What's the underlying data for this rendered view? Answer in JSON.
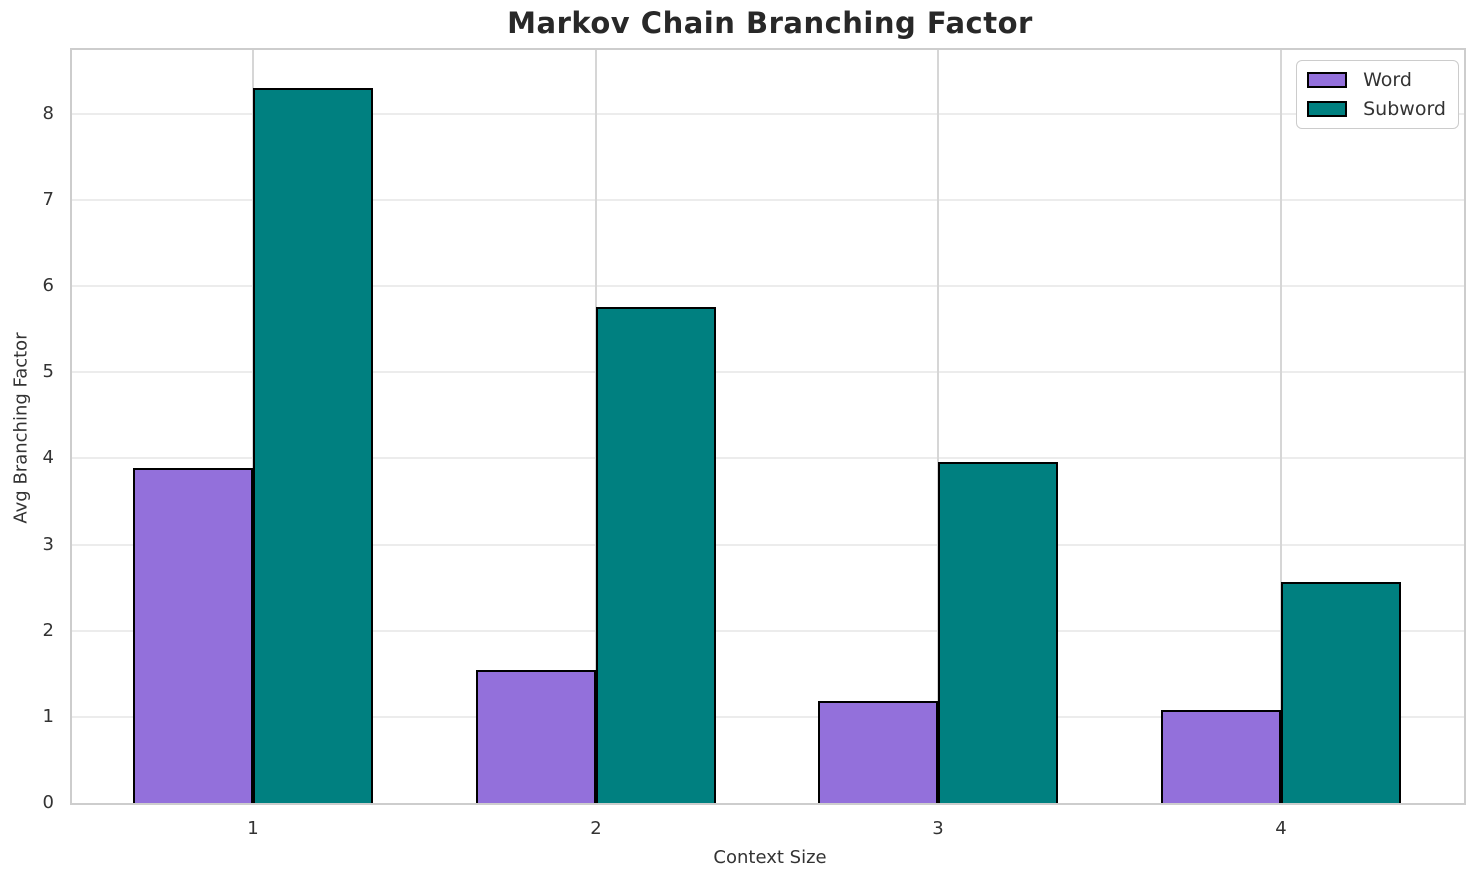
{
  "chart_data": {
    "type": "bar",
    "title": "Markov Chain Branching Factor",
    "xlabel": "Context Size",
    "ylabel": "Avg Branching Factor",
    "categories": [
      "1",
      "2",
      "3",
      "4"
    ],
    "series": [
      {
        "name": "Word",
        "color": "#9370DB",
        "values": [
          3.89,
          1.54,
          1.18,
          1.08
        ]
      },
      {
        "name": "Subword",
        "color": "#008080",
        "values": [
          8.3,
          5.76,
          3.96,
          2.57
        ]
      }
    ],
    "bar_edge_color": "#000000",
    "ylim": [
      0,
      8.74
    ],
    "yticks": [
      0,
      1,
      2,
      3,
      4,
      5,
      6,
      7,
      8
    ],
    "grid": true,
    "legend_position": "upper right"
  }
}
